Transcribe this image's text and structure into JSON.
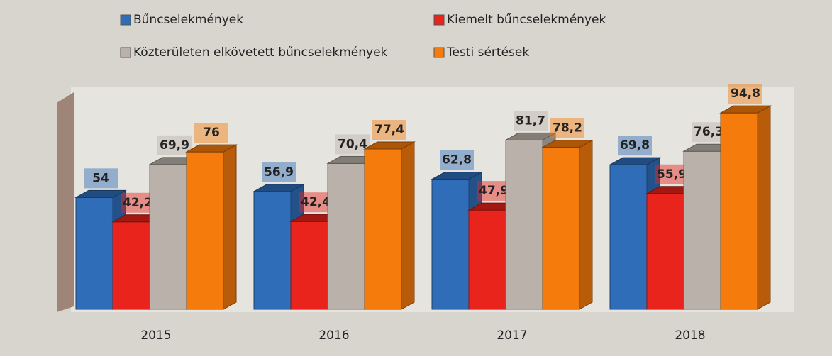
{
  "chart_data": {
    "type": "bar3d",
    "categories": [
      "2015",
      "2016",
      "2017",
      "2018"
    ],
    "series": [
      {
        "name": "Bűncselekmények",
        "color": "#2f6db8",
        "values": [
          54,
          56.9,
          62.8,
          69.8
        ],
        "value_labels": [
          "54",
          "56,9",
          "62,8",
          "69,8"
        ]
      },
      {
        "name": "Kiemelt bűncselekmények",
        "color": "#e8241c",
        "values": [
          42.2,
          42.4,
          47.9,
          55.9
        ],
        "value_labels": [
          "42,2",
          "42,4",
          "47,9",
          "55,9"
        ]
      },
      {
        "name": "Közterületen elkövetett bűncselekmények",
        "color": "#bab2aa",
        "values": [
          69.9,
          70.4,
          81.7,
          76.3
        ],
        "value_labels": [
          "69,9",
          "70,4",
          "81,7",
          "76,3"
        ]
      },
      {
        "name": "Testi sértések",
        "color": "#f57b0c",
        "values": [
          76,
          77.4,
          78.2,
          94.8
        ],
        "value_labels": [
          "76",
          "77,4",
          "78,2",
          "94,8"
        ]
      }
    ]
  }
}
